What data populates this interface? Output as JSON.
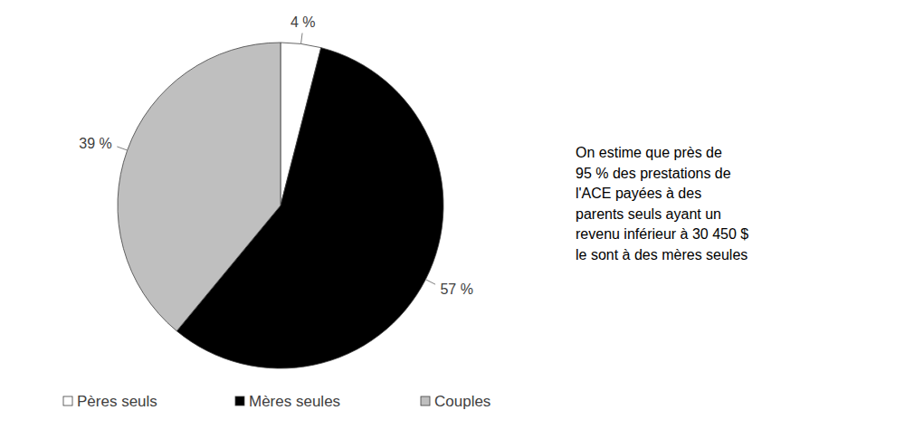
{
  "chart_data": {
    "type": "pie",
    "categories": [
      "Pères seuls",
      "Mères seules",
      "Couples"
    ],
    "values": [
      4,
      57,
      39
    ],
    "value_labels": [
      "4 %",
      "57 %",
      "39 %"
    ],
    "colors": [
      "#ffffff",
      "#000000",
      "#bfbfbf"
    ],
    "data_labels": true,
    "legend": "bottom",
    "annotation": [
      "On estime que près de",
      "95 % des prestations de",
      "l'ACE payées à des",
      "parents seuls ayant un",
      "revenu inférieur à 30 450 $",
      "le sont à des mères seules"
    ]
  }
}
